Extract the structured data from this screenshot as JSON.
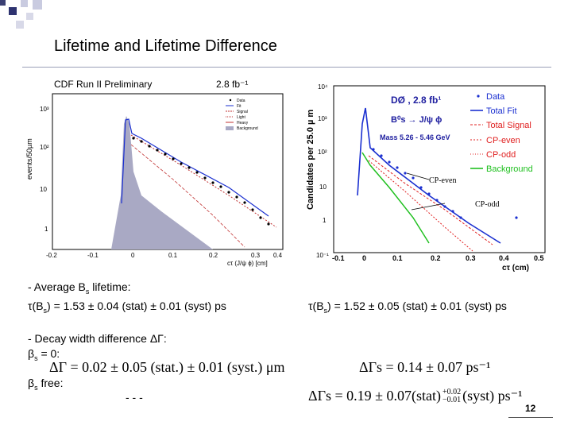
{
  "slide": {
    "title": "Lifetime and Lifetime Difference",
    "page_number": "12"
  },
  "cdf_plot": {
    "header_left": "CDF Run II Preliminary",
    "header_right": "2.8 fb⁻¹",
    "y_label": "events/50µm",
    "y_ticks": [
      "10³",
      "10²",
      "10",
      "1"
    ],
    "x_ticks": [
      "-0.2",
      "-0.1",
      "0",
      "0.1",
      "0.2",
      "0.3",
      "0.4"
    ],
    "x_label": "cτ (J/ψ ϕ) [cm]",
    "legend": [
      "Data",
      "Fit",
      "Signal",
      "Light",
      "Heavy",
      "Background"
    ]
  },
  "d0_plot": {
    "experiment": "DØ , 2.8 fb¹",
    "decay": "B⁰s → J/ψ ϕ",
    "mass_window": "Mass 5.26 - 5.46 GeV",
    "y_label": "Candidates per 25.0 µ m",
    "y_ticks": [
      "10⁴",
      "10³",
      "10²",
      "10",
      "1",
      "10⁻¹"
    ],
    "x_ticks": [
      "-0.1",
      "0",
      "0.1",
      "0.2",
      "0.3",
      "0.4",
      "0.5"
    ],
    "x_label": "cτ (cm)",
    "legend": [
      "Data",
      "Total Fit",
      "Total Signal",
      "CP-even",
      "CP-odd",
      "Background"
    ],
    "annotations": [
      "CP-even",
      "CP-odd"
    ],
    "colors": {
      "data": "#1a2fd0",
      "fit": "#1a2fd0",
      "signal": "#e02020",
      "cp": "#e02020",
      "background": "#20c020"
    }
  },
  "results": {
    "avg_label": "- Average B",
    "avg_sub": "s",
    "avg_suffix": " lifetime:",
    "cdf_tau_pre": "τ(B",
    "cdf_tau_sub": "s",
    "cdf_tau_post": ") = 1.53 ± 0.04 (stat) ± 0.01 (syst) ps",
    "d0_tau_pre": "τ(B",
    "d0_tau_sub": "s",
    "d0_tau_post": ") = 1.52 ± 0.05 (stat) ± 0.01 (syst) ps",
    "decay_width_label": "- Decay width difference ΔΓ:",
    "beta_zero_pre": "β",
    "beta_zero_sub": "s",
    "beta_zero_post": " = 0:",
    "beta_free_pre": "β",
    "beta_free_sub": "s",
    "beta_free_post": " free:",
    "cdf_dg_zero": "ΔΓ  =  0.02 ± 0.05 (stat.) ± 0.01 (syst.) μm",
    "d0_dg_zero": "ΔΓs  =  0.14 ± 0.07  ps⁻¹",
    "cdf_dg_free": "- - -",
    "d0_dg_free_main": "ΔΓs  =  0.19 ± 0.07(stat)",
    "d0_dg_free_up": "+0.02",
    "d0_dg_free_down": "−0.01",
    "d0_dg_free_tail": "(syst)  ps⁻¹"
  }
}
